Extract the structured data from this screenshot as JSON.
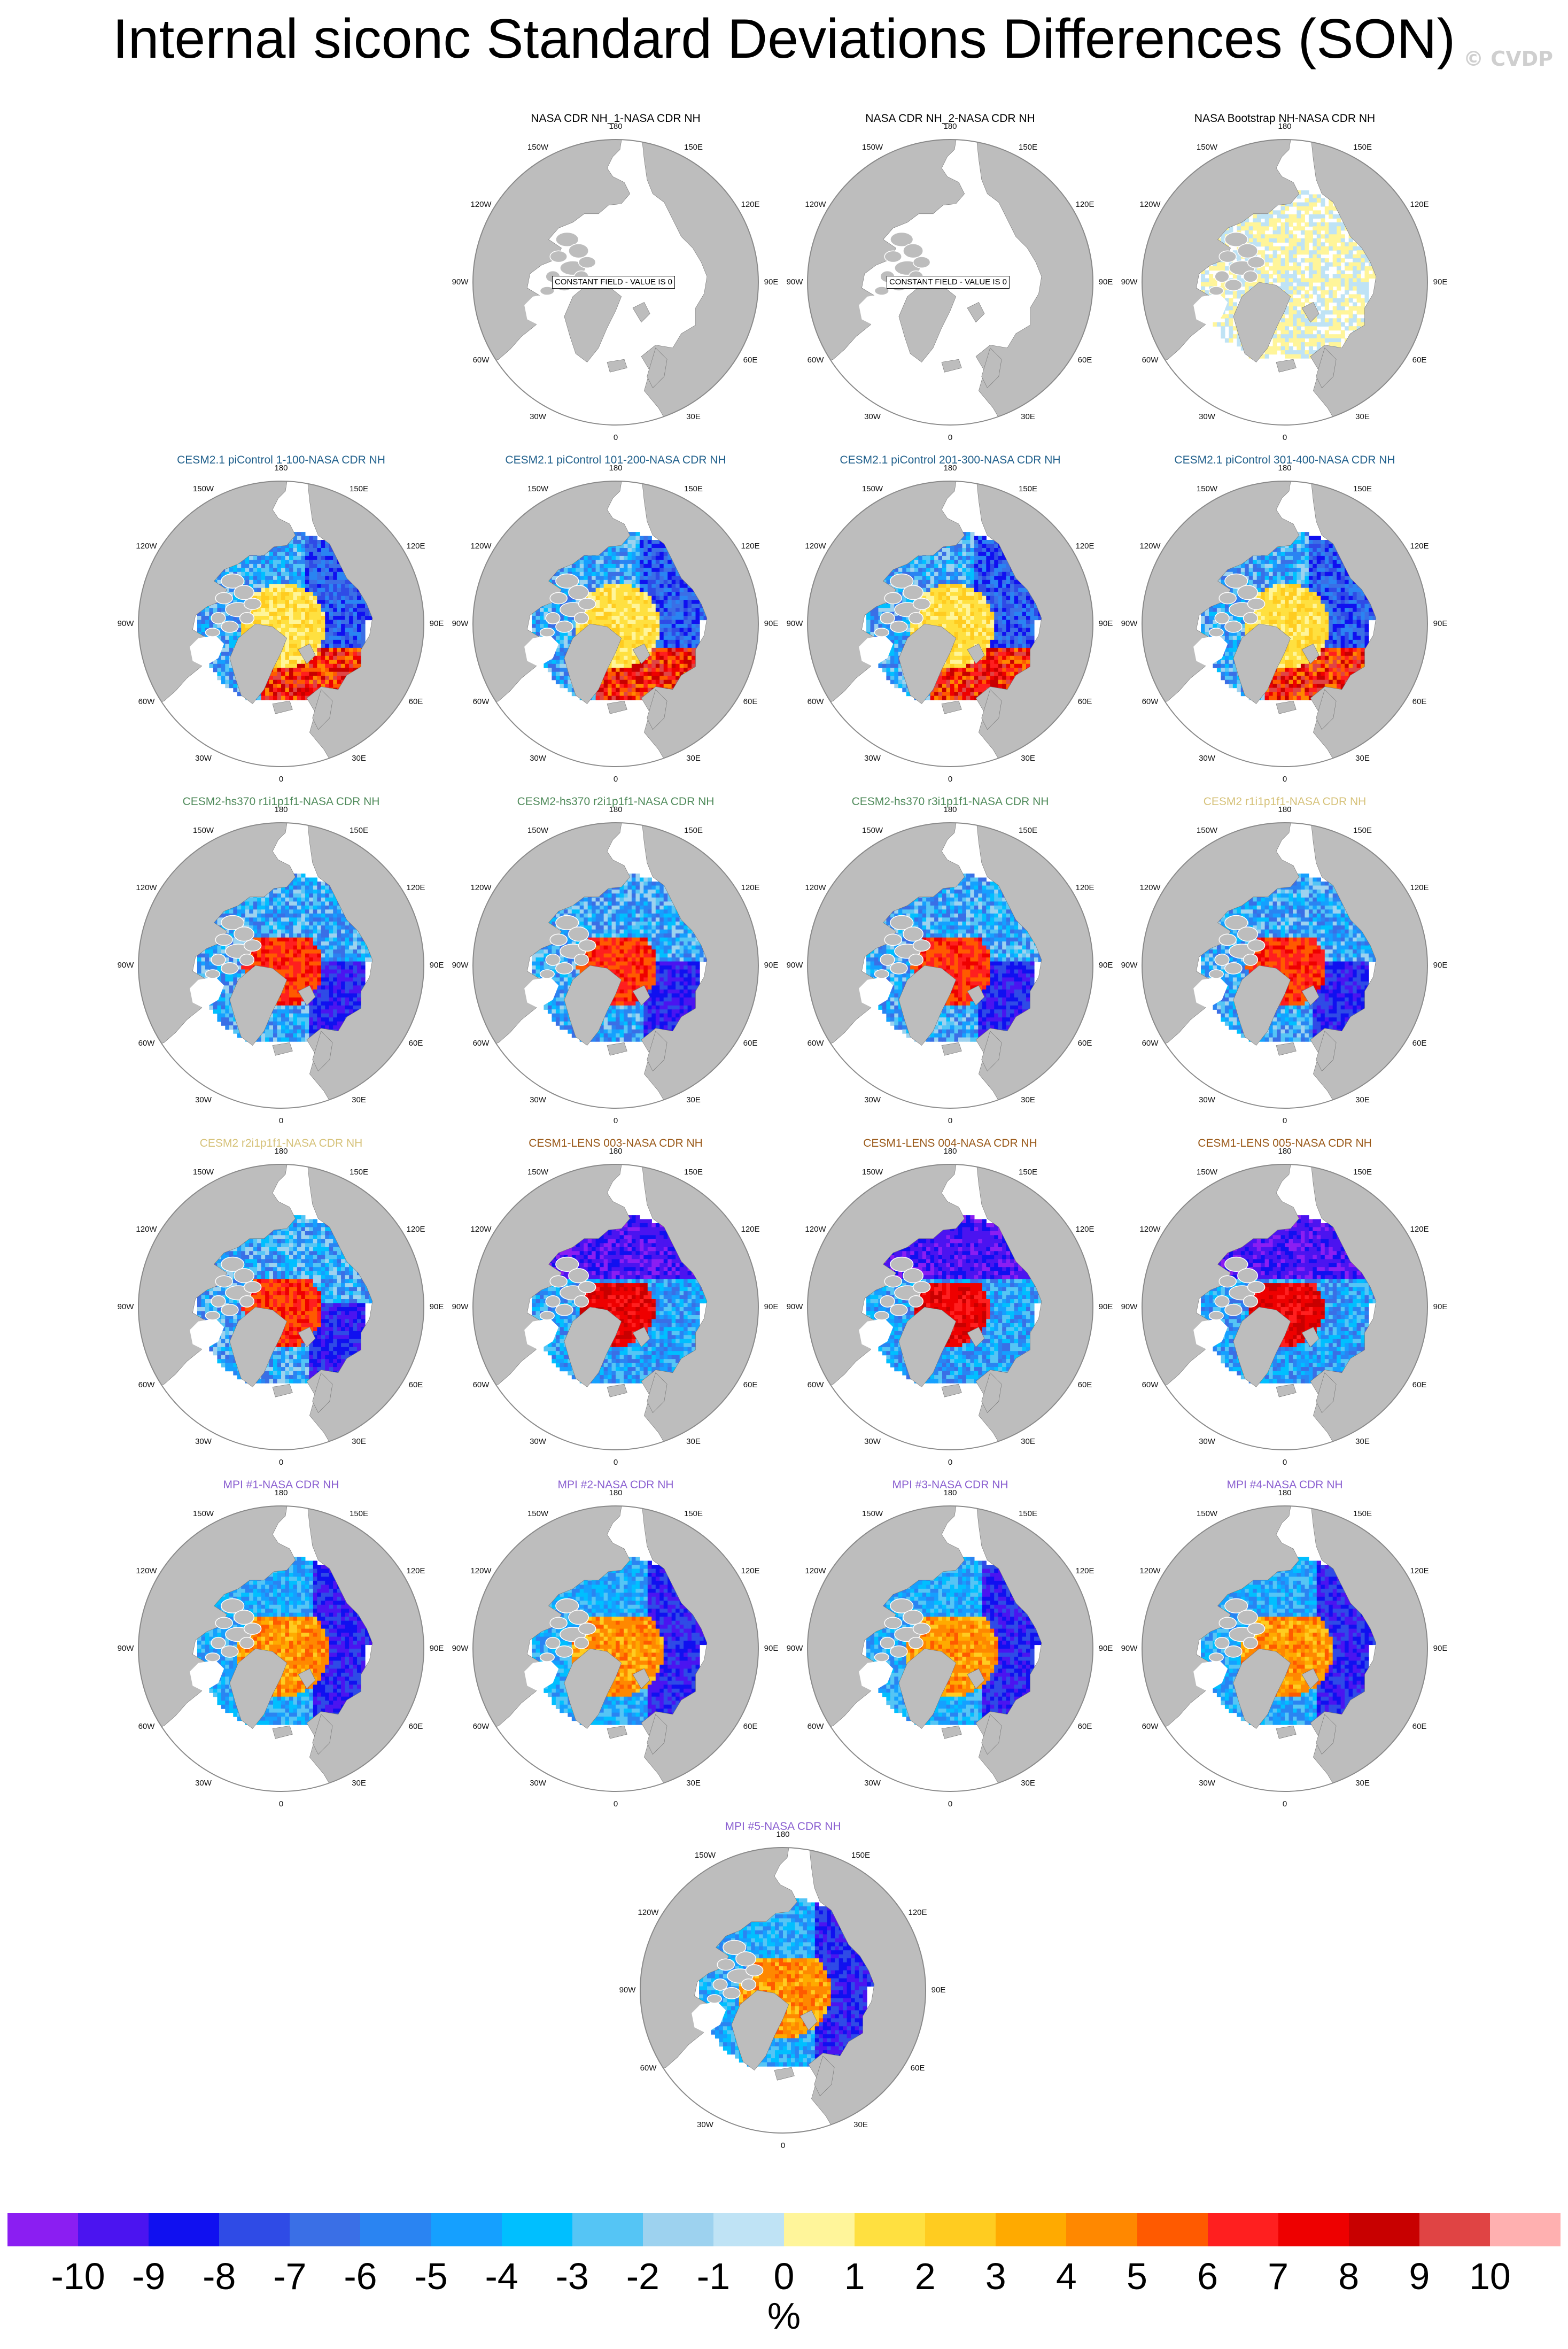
{
  "title": "Internal siconc Standard Deviations Differences (SON)",
  "watermark": "© CVDP",
  "colors": {
    "land": "#bdbdbd",
    "ocean": "#ffffff",
    "outline": "#8a8a8a"
  },
  "lon_labels": [
    "180",
    "150E",
    "120E",
    "90E",
    "60E",
    "30E",
    "0",
    "30W",
    "60W",
    "90W",
    "120W",
    "150W"
  ],
  "panels": [
    {
      "title": "NASA CDR NH_1-NASA CDR NH",
      "title_color": "#000000",
      "pattern": "constant",
      "note": "CONSTANT FIELD - VALUE IS 0"
    },
    {
      "title": "NASA CDR NH_2-NASA CDR NH",
      "title_color": "#000000",
      "pattern": "constant",
      "note": "CONSTANT FIELD - VALUE IS 0"
    },
    {
      "title": "NASA Bootstrap NH-NASA CDR NH",
      "title_color": "#000000",
      "pattern": "bootstrap",
      "note": ""
    },
    {
      "title": "CESM2.1 piControl 1-100-NASA CDR NH",
      "title_color": "#1f5f8b",
      "pattern": "picontrol",
      "note": ""
    },
    {
      "title": "CESM2.1 piControl 101-200-NASA CDR NH",
      "title_color": "#1f5f8b",
      "pattern": "picontrol",
      "note": ""
    },
    {
      "title": "CESM2.1 piControl 201-300-NASA CDR NH",
      "title_color": "#1f5f8b",
      "pattern": "picontrol",
      "note": ""
    },
    {
      "title": "CESM2.1 piControl 301-400-NASA CDR NH",
      "title_color": "#1f5f8b",
      "pattern": "picontrol",
      "note": ""
    },
    {
      "title": "CESM2-hs370 r1i1p1f1-NASA CDR NH",
      "title_color": "#4f8a5a",
      "pattern": "hs370",
      "note": ""
    },
    {
      "title": "CESM2-hs370 r2i1p1f1-NASA CDR NH",
      "title_color": "#4f8a5a",
      "pattern": "hs370",
      "note": ""
    },
    {
      "title": "CESM2-hs370 r3i1p1f1-NASA CDR NH",
      "title_color": "#4f8a5a",
      "pattern": "hs370",
      "note": ""
    },
    {
      "title": "CESM2 r1i1p1f1-NASA CDR NH",
      "title_color": "#d6c27a",
      "pattern": "hs370",
      "note": ""
    },
    {
      "title": "CESM2 r2i1p1f1-NASA CDR NH",
      "title_color": "#d6c27a",
      "pattern": "cesm2",
      "note": ""
    },
    {
      "title": "CESM1-LENS 003-NASA CDR NH",
      "title_color": "#9a5a1a",
      "pattern": "lens",
      "note": ""
    },
    {
      "title": "CESM1-LENS 004-NASA CDR NH",
      "title_color": "#9a5a1a",
      "pattern": "lens",
      "note": ""
    },
    {
      "title": "CESM1-LENS 005-NASA CDR NH",
      "title_color": "#9a5a1a",
      "pattern": "lens",
      "note": ""
    },
    {
      "title": "MPI #1-NASA CDR NH",
      "title_color": "#8a5fd0",
      "pattern": "mpi",
      "note": ""
    },
    {
      "title": "MPI #2-NASA CDR NH",
      "title_color": "#8a5fd0",
      "pattern": "mpi",
      "note": ""
    },
    {
      "title": "MPI #3-NASA CDR NH",
      "title_color": "#8a5fd0",
      "pattern": "mpi",
      "note": ""
    },
    {
      "title": "MPI #4-NASA CDR NH",
      "title_color": "#8a5fd0",
      "pattern": "mpi",
      "note": ""
    },
    {
      "title": "MPI #5-NASA CDR NH",
      "title_color": "#8a5fd0",
      "pattern": "mpi",
      "note": ""
    }
  ],
  "colorbar": {
    "colors": [
      "#8b1ef2",
      "#4b14f0",
      "#1010f0",
      "#2f4be6",
      "#3a6fe6",
      "#2a84f2",
      "#15a0ff",
      "#00bfff",
      "#55c5f5",
      "#9dd2ef",
      "#bfe3f5",
      "#fff59a",
      "#ffe040",
      "#ffcc20",
      "#ffaa00",
      "#ff8800",
      "#ff5a00",
      "#ff1f1f",
      "#ee0000",
      "#c80000",
      "#e04444",
      "#ffb0b0"
    ],
    "ticks": [
      "-10",
      "-9",
      "-8",
      "-7",
      "-6",
      "-5",
      "-4",
      "-3",
      "-2",
      "-1",
      "0",
      "1",
      "2",
      "3",
      "4",
      "5",
      "6",
      "7",
      "8",
      "9",
      "10"
    ],
    "units": "%"
  }
}
